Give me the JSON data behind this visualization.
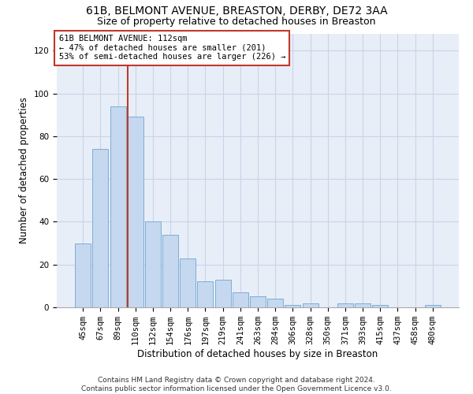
{
  "title1": "61B, BELMONT AVENUE, BREASTON, DERBY, DE72 3AA",
  "title2": "Size of property relative to detached houses in Breaston",
  "xlabel": "Distribution of detached houses by size in Breaston",
  "ylabel": "Number of detached properties",
  "categories": [
    "45sqm",
    "67sqm",
    "89sqm",
    "110sqm",
    "132sqm",
    "154sqm",
    "176sqm",
    "197sqm",
    "219sqm",
    "241sqm",
    "263sqm",
    "284sqm",
    "306sqm",
    "328sqm",
    "350sqm",
    "371sqm",
    "393sqm",
    "415sqm",
    "437sqm",
    "458sqm",
    "480sqm"
  ],
  "values": [
    30,
    74,
    94,
    89,
    40,
    34,
    23,
    12,
    13,
    7,
    5,
    4,
    1,
    2,
    0,
    2,
    2,
    1,
    0,
    0,
    1
  ],
  "bar_color": "#c5d8ef",
  "bar_edge_color": "#7aaed4",
  "vline_color": "#c0392b",
  "annotation_text": "61B BELMONT AVENUE: 112sqm\n← 47% of detached houses are smaller (201)\n53% of semi-detached houses are larger (226) →",
  "annotation_box_color": "#ffffff",
  "annotation_box_edge_color": "#c0392b",
  "ylim": [
    0,
    128
  ],
  "yticks": [
    0,
    20,
    40,
    60,
    80,
    100,
    120
  ],
  "grid_color": "#c8d4e8",
  "bg_color": "#e8eef8",
  "footnote": "Contains HM Land Registry data © Crown copyright and database right 2024.\nContains public sector information licensed under the Open Government Licence v3.0.",
  "title1_fontsize": 10,
  "title2_fontsize": 9,
  "xlabel_fontsize": 8.5,
  "ylabel_fontsize": 8.5,
  "tick_fontsize": 7.5,
  "annot_fontsize": 7.5,
  "footnote_fontsize": 6.5
}
